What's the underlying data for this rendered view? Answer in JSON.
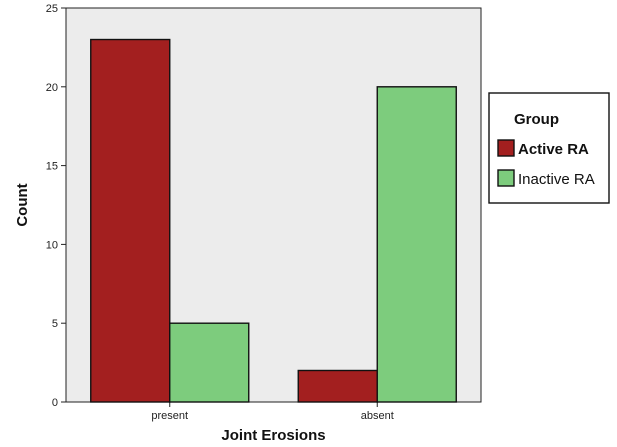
{
  "chart_data": {
    "type": "bar",
    "title": "",
    "xlabel": "Joint Erosions",
    "ylabel": "Count",
    "categories": [
      "present",
      "absent"
    ],
    "series": [
      {
        "name": "Active RA",
        "values": [
          23,
          2
        ],
        "color": "#a31f1f"
      },
      {
        "name": "Inactive RA",
        "values": [
          5,
          20
        ],
        "color": "#7dcc7d"
      }
    ],
    "ylim": [
      0,
      25
    ],
    "yticks": [
      0,
      5,
      10,
      15,
      20,
      25
    ],
    "legend": {
      "title": "Group",
      "placement": "right"
    },
    "grid": false,
    "plot_background": "#ececec"
  }
}
